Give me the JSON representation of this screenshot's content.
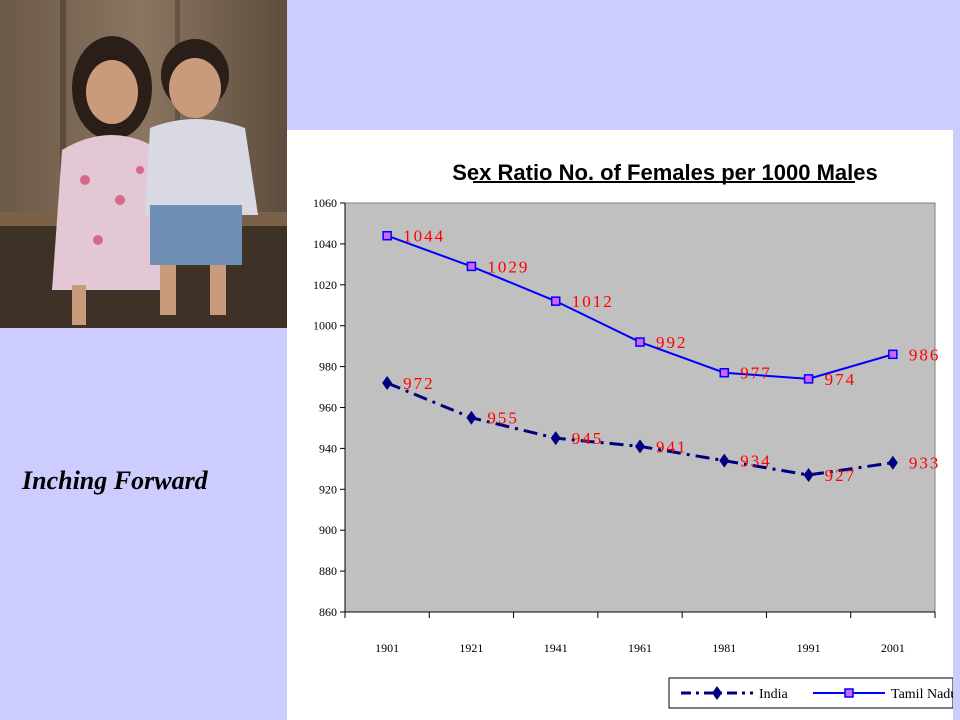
{
  "slide": {
    "caption": "Inching Forward"
  },
  "colors": {
    "slide_background": "#CCCCFF",
    "plot_area": "#C0C0C0",
    "india_series": "#000080",
    "tamil_nadu_series": "#0000FF",
    "data_labels": "#FF0000"
  },
  "chart_data": {
    "type": "line",
    "title": "Sex Ratio No. of Females per 1000 Males",
    "xlabel": "",
    "ylabel": "",
    "categories": [
      "1901",
      "1921",
      "1941",
      "1961",
      "1981",
      "1991",
      "2001"
    ],
    "ylim": [
      860,
      1060
    ],
    "yticks": [
      "860",
      "880",
      "900",
      "920",
      "940",
      "960",
      "980",
      "1000",
      "1020",
      "1040",
      "1060"
    ],
    "grid": false,
    "legend_position": "bottom-right",
    "series": [
      {
        "name": "India",
        "values": [
          972,
          955,
          945,
          941,
          934,
          927,
          933
        ],
        "labels": [
          "972",
          "955",
          "945",
          "941",
          "934",
          "927",
          "933"
        ],
        "marker": "diamond",
        "line_style": "dash-dot"
      },
      {
        "name": "Tamil Nadu",
        "values": [
          1044,
          1029,
          1012,
          992,
          977,
          974,
          986
        ],
        "labels": [
          "1044",
          "1029",
          "1012",
          "992",
          "977",
          "974",
          "986"
        ],
        "marker": "square",
        "line_style": "solid"
      }
    ]
  }
}
